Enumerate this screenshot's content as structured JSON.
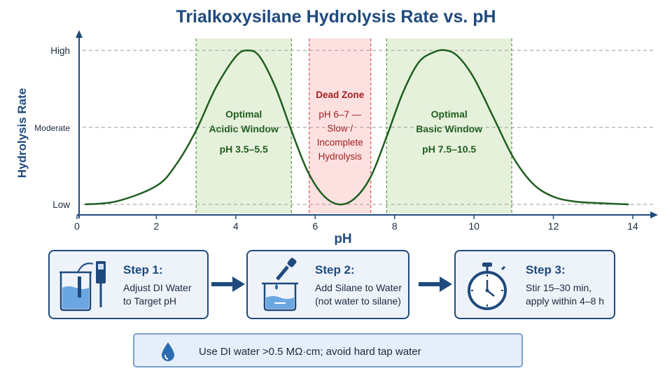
{
  "title": "Trialkoxysilane Hydrolysis Rate vs. pH",
  "chart_data": {
    "type": "line",
    "xlabel": "pH",
    "ylabel": "Hydrolysis Rate",
    "xlim": [
      0,
      14
    ],
    "xticks": [
      0,
      2,
      4,
      6,
      8,
      10,
      12,
      14
    ],
    "yticks": [
      {
        "label": "Low",
        "level": 0
      },
      {
        "label": "Moderate",
        "level": 0.5
      },
      {
        "label": "High",
        "level": 1
      }
    ],
    "grid": "horizontal dashed",
    "series": [
      {
        "x": [
          0.2,
          1.0,
          2.0,
          2.5,
          3.0,
          3.5,
          4.0,
          4.3,
          4.6,
          5.0,
          5.4,
          5.8,
          6.2,
          6.6,
          7.0,
          7.4,
          7.8,
          8.2,
          8.6,
          9.0,
          9.3,
          9.6,
          10.0,
          10.5,
          11.0,
          11.5,
          12.0,
          12.5,
          13.0,
          13.9
        ],
        "y": [
          0.0,
          0.02,
          0.12,
          0.26,
          0.48,
          0.76,
          0.96,
          1.0,
          0.96,
          0.76,
          0.48,
          0.22,
          0.06,
          0.0,
          0.04,
          0.18,
          0.44,
          0.72,
          0.92,
          0.99,
          1.0,
          0.96,
          0.82,
          0.56,
          0.3,
          0.13,
          0.05,
          0.02,
          0.01,
          0.0
        ],
        "color": "#1e5e1e"
      }
    ],
    "regions": [
      {
        "x0": 3.0,
        "x1": 5.4,
        "lines": [
          "Optimal",
          "Acidic Window",
          "pH 3.5–5.5"
        ],
        "fill": "#e6f1dc",
        "stroke": "#5a9a4a",
        "text_color": "#1e5e1e"
      },
      {
        "x0": 5.85,
        "x1": 7.4,
        "lines": [
          "Dead Zone",
          "pH 6–7 —",
          "Slow /",
          "Incomplete",
          "Hydrolysis"
        ],
        "fill": "#fde1e1",
        "stroke": "#d9534f",
        "text_color": "#a02020"
      },
      {
        "x0": 7.8,
        "x1": 10.95,
        "lines": [
          "Optimal",
          "Basic Window",
          "pH 7.5–10.5"
        ],
        "fill": "#e6f1dc",
        "stroke": "#5a9a4a",
        "text_color": "#1e5e1e"
      }
    ]
  },
  "steps": [
    {
      "title": "Step 1:",
      "line1": "Adjust DI Water",
      "line2": "to Target pH",
      "icon": "ph-meter-beaker-icon"
    },
    {
      "title": "Step 2:",
      "line1": "Add Silane to Water",
      "line2": "(not water to silane)",
      "icon": "dropper-beaker-icon"
    },
    {
      "title": "Step 3:",
      "line1": "Stir 15–30 min,",
      "line2": "apply within 4–8 h",
      "icon": "stopwatch-icon"
    }
  ],
  "note": {
    "text": "Use DI water >0.5 MΩ·cm; avoid hard tap water",
    "icon": "water-drop-icon"
  },
  "colors": {
    "navy": "#1f4a7d",
    "curve": "#1e5e1e",
    "optimal_fill": "#e6f1dc",
    "dead_fill": "#fde1e1",
    "icon_blue": "#2b6cb0"
  }
}
